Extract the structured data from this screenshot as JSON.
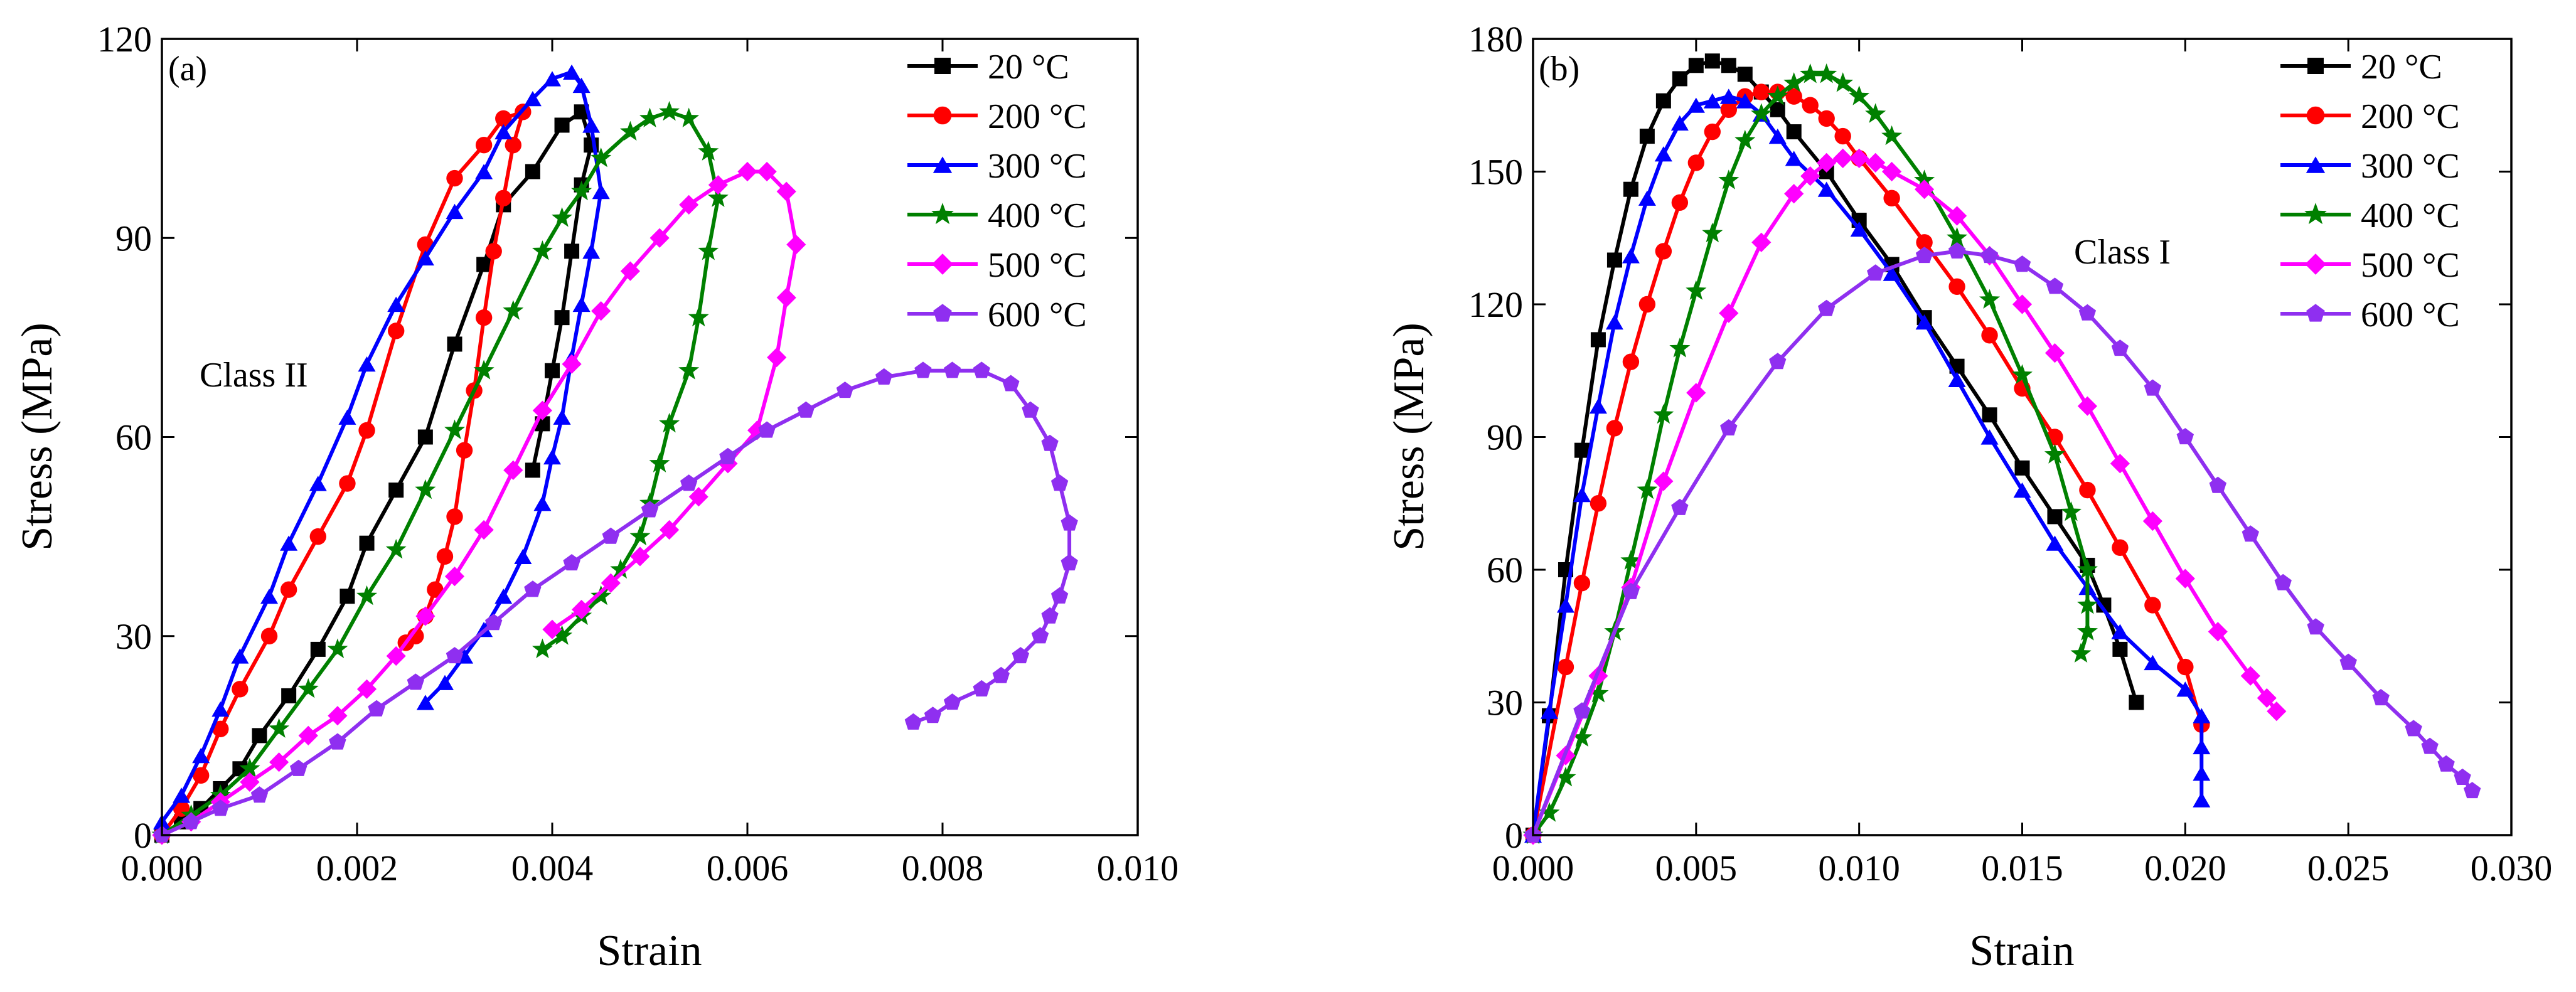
{
  "figure": {
    "legend_labels": [
      "20 °C",
      "200 °C",
      "300 °C",
      "400 °C",
      "500 °C",
      "600 °C"
    ],
    "series_colors": [
      "#000000",
      "#ff0000",
      "#0000ff",
      "#008000",
      "#ff00ff",
      "#8f2ff0"
    ],
    "marker_shapes": [
      "square",
      "circle",
      "triangle",
      "star",
      "diamond",
      "pentagon"
    ]
  },
  "chart_data": [
    {
      "type": "line",
      "panel_label": "(a)",
      "annotation": "Class II",
      "xlabel": "Strain",
      "ylabel": "Stress (MPa)",
      "xlim": [
        0,
        0.01
      ],
      "ylim": [
        0,
        120
      ],
      "xticks": [
        0,
        0.002,
        0.004,
        0.006,
        0.008,
        0.01
      ],
      "yticks": [
        0,
        30,
        60,
        90,
        120
      ],
      "xtick_labels": [
        "0.000",
        "0.002",
        "0.004",
        "0.006",
        "0.008",
        "0.010"
      ],
      "ytick_labels": [
        "0",
        "30",
        "60",
        "90",
        "120"
      ],
      "legend_position": "top-right",
      "series": [
        {
          "name": "20 °C",
          "x": [
            0.0,
            0.0002,
            0.0004,
            0.0006,
            0.0008,
            0.001,
            0.0013,
            0.0016,
            0.0019,
            0.0021,
            0.0024,
            0.0027,
            0.003,
            0.0033,
            0.0035,
            0.0038,
            0.0041,
            0.0043,
            0.0044,
            0.0043,
            0.0042,
            0.0041,
            0.004,
            0.0039,
            0.0038
          ],
          "y": [
            0,
            2,
            4,
            7,
            10,
            15,
            21,
            28,
            36,
            44,
            52,
            60,
            74,
            86,
            95,
            100,
            107,
            109,
            104,
            98,
            88,
            78,
            70,
            62,
            55
          ]
        },
        {
          "name": "200 °C",
          "x": [
            0.0,
            0.0002,
            0.0004,
            0.0006,
            0.0008,
            0.0011,
            0.0013,
            0.0016,
            0.0019,
            0.0021,
            0.0024,
            0.0027,
            0.003,
            0.0033,
            0.0035,
            0.0037,
            0.0036,
            0.0035,
            0.0034,
            0.0033,
            0.0032,
            0.0031,
            0.003,
            0.0029,
            0.0028,
            0.0027,
            0.0026,
            0.0025
          ],
          "y": [
            0,
            4,
            9,
            16,
            22,
            30,
            37,
            45,
            53,
            61,
            76,
            89,
            99,
            104,
            108,
            109,
            104,
            96,
            88,
            78,
            67,
            58,
            48,
            42,
            37,
            33,
            30,
            29
          ]
        },
        {
          "name": "300 °C",
          "x": [
            0.0,
            0.0002,
            0.0004,
            0.0006,
            0.0008,
            0.0011,
            0.0013,
            0.0016,
            0.0019,
            0.0021,
            0.0024,
            0.0027,
            0.003,
            0.0033,
            0.0035,
            0.0038,
            0.004,
            0.0042,
            0.0043,
            0.0044,
            0.0045,
            0.0044,
            0.0043,
            0.0042,
            0.0041,
            0.004,
            0.0039,
            0.0037,
            0.0035,
            0.0033,
            0.0031,
            0.0029,
            0.0027
          ],
          "y": [
            2,
            6,
            12,
            19,
            27,
            36,
            44,
            53,
            63,
            71,
            80,
            87,
            94,
            100,
            106,
            111,
            114,
            115,
            113,
            107,
            97,
            88,
            80,
            72,
            63,
            57,
            50,
            42,
            36,
            31,
            27,
            23,
            20
          ]
        },
        {
          "name": "400 °C",
          "x": [
            0.0,
            0.0003,
            0.0006,
            0.0009,
            0.0012,
            0.0015,
            0.0018,
            0.0021,
            0.0024,
            0.0027,
            0.003,
            0.0033,
            0.0036,
            0.0039,
            0.0041,
            0.0043,
            0.0045,
            0.0048,
            0.005,
            0.0052,
            0.0054,
            0.0056,
            0.0057,
            0.0056,
            0.0055,
            0.0054,
            0.0052,
            0.0051,
            0.005,
            0.0049,
            0.0047,
            0.0045,
            0.0043,
            0.0041,
            0.0039
          ],
          "y": [
            0,
            3,
            6,
            10,
            16,
            22,
            28,
            36,
            43,
            52,
            61,
            70,
            79,
            88,
            93,
            97,
            102,
            106,
            108,
            109,
            108,
            103,
            96,
            88,
            78,
            70,
            62,
            56,
            50,
            45,
            40,
            36,
            33,
            30,
            28
          ]
        },
        {
          "name": "500 °C",
          "x": [
            0.0,
            0.0003,
            0.0006,
            0.0009,
            0.0012,
            0.0015,
            0.0018,
            0.0021,
            0.0024,
            0.0027,
            0.003,
            0.0033,
            0.0036,
            0.0039,
            0.0042,
            0.0045,
            0.0048,
            0.0051,
            0.0054,
            0.0057,
            0.006,
            0.0062,
            0.0064,
            0.0065,
            0.0064,
            0.0063,
            0.0061,
            0.0058,
            0.0055,
            0.0052,
            0.0049,
            0.0046,
            0.0043,
            0.004
          ],
          "y": [
            0,
            2,
            5,
            8,
            11,
            15,
            18,
            22,
            27,
            33,
            39,
            46,
            55,
            64,
            71,
            79,
            85,
            90,
            95,
            98,
            100,
            100,
            97,
            89,
            81,
            72,
            61,
            56,
            51,
            46,
            42,
            38,
            34,
            31
          ]
        },
        {
          "name": "600 °C",
          "x": [
            0.0,
            0.0003,
            0.0006,
            0.001,
            0.0014,
            0.0018,
            0.0022,
            0.0026,
            0.003,
            0.0034,
            0.0038,
            0.0042,
            0.0046,
            0.005,
            0.0054,
            0.0058,
            0.0062,
            0.0066,
            0.007,
            0.0074,
            0.0078,
            0.0081,
            0.0084,
            0.0087,
            0.0089,
            0.0091,
            0.0092,
            0.0093,
            0.0093,
            0.0092,
            0.0091,
            0.009,
            0.0088,
            0.0086,
            0.0084,
            0.0081,
            0.0079,
            0.0077
          ],
          "y": [
            0,
            2,
            4,
            6,
            10,
            14,
            19,
            23,
            27,
            32,
            37,
            41,
            45,
            49,
            53,
            57,
            61,
            64,
            67,
            69,
            70,
            70,
            70,
            68,
            64,
            59,
            53,
            47,
            41,
            36,
            33,
            30,
            27,
            24,
            22,
            20,
            18,
            17
          ]
        }
      ]
    },
    {
      "type": "line",
      "panel_label": "(b)",
      "annotation": "Class I",
      "xlabel": "Strain",
      "ylabel": "Stress (MPa)",
      "xlim": [
        0,
        0.03
      ],
      "ylim": [
        0,
        180
      ],
      "xticks": [
        0,
        0.005,
        0.01,
        0.015,
        0.02,
        0.025,
        0.03
      ],
      "yticks": [
        0,
        30,
        60,
        90,
        120,
        150,
        180
      ],
      "xtick_labels": [
        "0.000",
        "0.005",
        "0.010",
        "0.015",
        "0.020",
        "0.025",
        "0.030"
      ],
      "ytick_labels": [
        "0",
        "30",
        "60",
        "90",
        "120",
        "150",
        "180"
      ],
      "legend_position": "top-right",
      "series": [
        {
          "name": "20 °C",
          "x": [
            0.0,
            0.0005,
            0.001,
            0.0015,
            0.002,
            0.0025,
            0.003,
            0.0035,
            0.004,
            0.0045,
            0.005,
            0.0055,
            0.006,
            0.0065,
            0.007,
            0.0075,
            0.008,
            0.009,
            0.01,
            0.011,
            0.012,
            0.013,
            0.014,
            0.015,
            0.016,
            0.017,
            0.0175,
            0.018,
            0.0185
          ],
          "y": [
            0,
            27,
            60,
            87,
            112,
            130,
            146,
            158,
            166,
            171,
            174,
            175,
            174,
            172,
            168,
            164,
            159,
            150,
            139,
            129,
            117,
            106,
            95,
            83,
            72,
            61,
            52,
            42,
            30
          ]
        },
        {
          "name": "200 °C",
          "x": [
            0.0,
            0.001,
            0.0015,
            0.002,
            0.0025,
            0.003,
            0.0035,
            0.004,
            0.0045,
            0.005,
            0.0055,
            0.006,
            0.0065,
            0.007,
            0.0075,
            0.008,
            0.0085,
            0.009,
            0.0095,
            0.01,
            0.011,
            0.012,
            0.013,
            0.014,
            0.015,
            0.016,
            0.017,
            0.018,
            0.019,
            0.02,
            0.0205
          ],
          "y": [
            0,
            38,
            57,
            75,
            92,
            107,
            120,
            132,
            143,
            152,
            159,
            164,
            167,
            168,
            168,
            167,
            165,
            162,
            158,
            153,
            144,
            134,
            124,
            113,
            101,
            90,
            78,
            65,
            52,
            38,
            25
          ]
        },
        {
          "name": "300 °C",
          "x": [
            0.0,
            0.0005,
            0.001,
            0.0015,
            0.002,
            0.0025,
            0.003,
            0.0035,
            0.004,
            0.0045,
            0.005,
            0.0055,
            0.006,
            0.0065,
            0.007,
            0.0075,
            0.008,
            0.009,
            0.01,
            0.011,
            0.012,
            0.013,
            0.014,
            0.015,
            0.016,
            0.017,
            0.018,
            0.019,
            0.02,
            0.0205,
            0.0205,
            0.0205,
            0.0205
          ],
          "y": [
            0,
            28,
            52,
            77,
            97,
            116,
            131,
            144,
            154,
            161,
            165,
            166,
            167,
            166,
            163,
            158,
            153,
            146,
            137,
            127,
            116,
            103,
            90,
            78,
            66,
            56,
            46,
            39,
            33,
            27,
            20,
            14,
            8
          ]
        },
        {
          "name": "400 °C",
          "x": [
            0.0,
            0.0005,
            0.001,
            0.0015,
            0.002,
            0.0025,
            0.003,
            0.0035,
            0.004,
            0.0045,
            0.005,
            0.0055,
            0.006,
            0.0065,
            0.007,
            0.0075,
            0.008,
            0.0085,
            0.009,
            0.0095,
            0.01,
            0.0105,
            0.011,
            0.012,
            0.013,
            0.014,
            0.015,
            0.016,
            0.0165,
            0.017,
            0.017,
            0.017,
            0.0168
          ],
          "y": [
            0,
            5,
            13,
            22,
            32,
            46,
            62,
            78,
            95,
            110,
            123,
            136,
            148,
            157,
            163,
            167,
            170,
            172,
            172,
            170,
            167,
            163,
            158,
            148,
            135,
            121,
            104,
            86,
            73,
            60,
            52,
            46,
            41
          ]
        },
        {
          "name": "500 °C",
          "x": [
            0.0,
            0.001,
            0.002,
            0.003,
            0.004,
            0.005,
            0.006,
            0.007,
            0.008,
            0.0085,
            0.009,
            0.0095,
            0.01,
            0.0105,
            0.011,
            0.012,
            0.013,
            0.014,
            0.015,
            0.016,
            0.017,
            0.018,
            0.019,
            0.02,
            0.021,
            0.022,
            0.0225,
            0.0228
          ],
          "y": [
            0,
            18,
            36,
            56,
            80,
            100,
            118,
            134,
            145,
            149,
            152,
            153,
            153,
            152,
            150,
            146,
            140,
            131,
            120,
            109,
            97,
            84,
            71,
            58,
            46,
            36,
            31,
            28
          ]
        },
        {
          "name": "600 °C",
          "x": [
            0.0,
            0.0015,
            0.003,
            0.0045,
            0.006,
            0.0075,
            0.009,
            0.0105,
            0.012,
            0.013,
            0.014,
            0.015,
            0.016,
            0.017,
            0.018,
            0.019,
            0.02,
            0.021,
            0.022,
            0.023,
            0.024,
            0.025,
            0.026,
            0.027,
            0.0275,
            0.028,
            0.0285,
            0.0288
          ],
          "y": [
            0,
            28,
            55,
            74,
            92,
            107,
            119,
            127,
            131,
            132,
            131,
            129,
            124,
            118,
            110,
            101,
            90,
            79,
            68,
            57,
            47,
            39,
            31,
            24,
            20,
            16,
            13,
            10
          ]
        }
      ]
    }
  ]
}
